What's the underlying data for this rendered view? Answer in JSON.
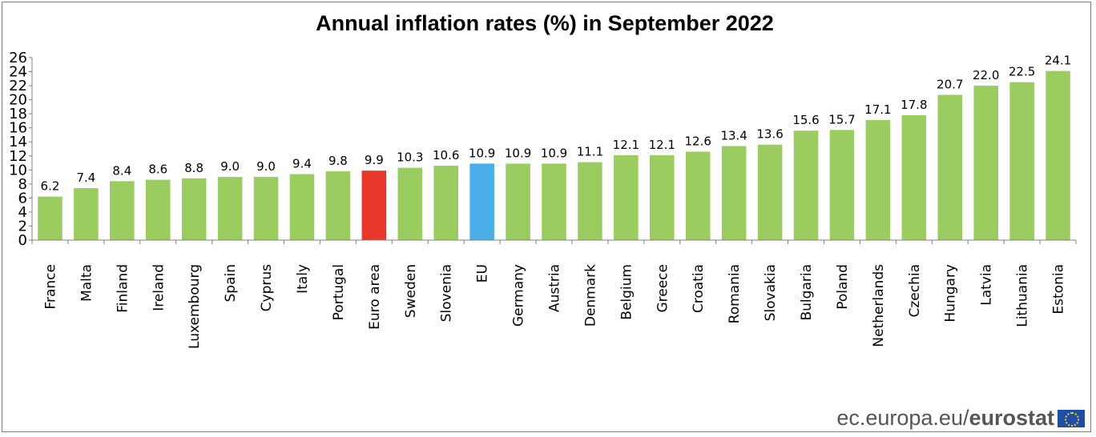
{
  "chart_data": {
    "type": "bar",
    "title": "Annual inflation rates (%) in September 2022",
    "xlabel": "",
    "ylabel": "",
    "ylim": [
      0,
      26
    ],
    "yticks": [
      0,
      2,
      4,
      6,
      8,
      10,
      12,
      14,
      16,
      18,
      20,
      22,
      24,
      26
    ],
    "grid": false,
    "categories": [
      "France",
      "Malta",
      "Finland",
      "Ireland",
      "Luxembourg",
      "Spain",
      "Cyprus",
      "Italy",
      "Portugal",
      "Euro area",
      "Sweden",
      "Slovenia",
      "EU",
      "Germany",
      "Austria",
      "Denmark",
      "Belgium",
      "Greece",
      "Croatia",
      "Romania",
      "Slovakia",
      "Bulgaria",
      "Poland",
      "Netherlands",
      "Czechia",
      "Hungary",
      "Latvia",
      "Lithuania",
      "Estonia"
    ],
    "values": [
      6.2,
      7.4,
      8.4,
      8.6,
      8.8,
      9.0,
      9.0,
      9.4,
      9.8,
      9.9,
      10.3,
      10.6,
      10.9,
      10.9,
      10.9,
      11.1,
      12.1,
      12.1,
      12.6,
      13.4,
      13.6,
      15.6,
      15.7,
      17.1,
      17.8,
      20.7,
      22.0,
      22.5,
      24.1
    ],
    "data_labels": [
      "6.2",
      "7.4",
      "8.4",
      "8.6",
      "8.8",
      "9.0",
      "9.0",
      "9.4",
      "9.8",
      "9.9",
      "10.3",
      "10.6",
      "10.9",
      "10.9",
      "10.9",
      "11.1",
      "12.1",
      "12.1",
      "12.6",
      "13.4",
      "13.6",
      "15.6",
      "15.7",
      "17.1",
      "17.8",
      "20.7",
      "22.0",
      "22.5",
      "24.1"
    ],
    "colors": {
      "default": "#9bcc5f",
      "Euro area": "#e8382b",
      "EU": "#4aaee8"
    }
  },
  "footer": {
    "site": "ec.europa.eu/",
    "brand": "eurostat",
    "logo_icon": "eu-flag-icon"
  }
}
